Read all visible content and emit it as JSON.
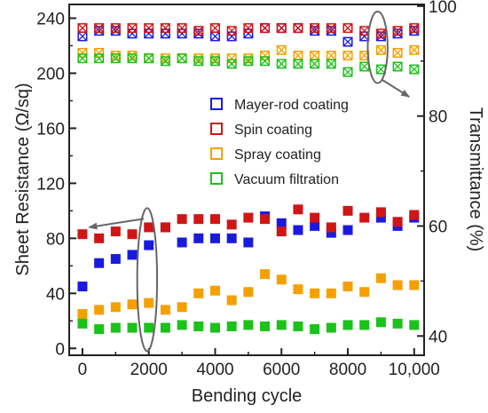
{
  "chart_data": {
    "type": "scatter",
    "xlabel": "Bending cycle",
    "ylabel_left": "Sheet Resistance (Ω/sq)",
    "ylabel_right": "Transmittance (%)",
    "xlim": [
      -400,
      10300
    ],
    "ylim_left": [
      -5,
      250
    ],
    "ylim_right": [
      36.5,
      100.3
    ],
    "x_ticks": [
      0,
      2000,
      4000,
      6000,
      8000,
      10000
    ],
    "x_tick_labels": [
      "0",
      "2000",
      "4000",
      "6000",
      "8000",
      "10,000"
    ],
    "y_left_ticks": [
      0,
      40,
      80,
      120,
      160,
      200,
      240
    ],
    "y_left_tick_labels": [
      "0",
      "40",
      "80",
      "120",
      "160",
      "200",
      "240"
    ],
    "y_right_ticks": [
      40,
      60,
      80,
      100
    ],
    "y_right_tick_labels": [
      "40",
      "60",
      "80",
      "100"
    ],
    "grid": false,
    "legend_position": "center-right",
    "x": [
      0,
      500,
      1000,
      1500,
      2000,
      2500,
      3000,
      3500,
      4000,
      4500,
      5000,
      5500,
      6000,
      6500,
      7000,
      7500,
      8000,
      8500,
      9000,
      9500,
      10000
    ],
    "series": [
      {
        "name": "Mayer-rod coating",
        "color": "#1a1adf",
        "sheet_resistance": [
          45,
          62,
          65,
          68,
          75,
          88,
          77,
          80,
          80,
          80,
          77,
          96,
          91,
          86,
          89,
          84,
          86,
          null,
          95,
          89,
          95
        ],
        "transmittance": [
          94.5,
          95.5,
          95.5,
          95,
          95,
          95,
          95,
          95,
          94.5,
          94.5,
          95,
          96,
          96,
          96,
          95.5,
          95.5,
          93.5,
          94.5,
          94.5,
          95,
          95.5
        ]
      },
      {
        "name": "Spin coating",
        "color": "#d01515",
        "sheet_resistance": [
          83,
          80,
          85,
          83,
          88,
          88,
          94,
          94,
          94,
          90,
          95,
          94,
          85,
          101,
          95,
          88,
          100,
          95,
          99,
          92,
          97
        ],
        "transmittance": [
          96,
          96,
          96,
          96,
          96,
          96,
          96,
          95.5,
          96,
          95.5,
          96,
          96,
          96,
          96,
          96,
          96,
          96,
          95.5,
          95,
          95.5,
          96
        ]
      },
      {
        "name": "Spray coating",
        "color": "#f5a000",
        "sheet_resistance": [
          25,
          28,
          30,
          32,
          33,
          28,
          30,
          40,
          42,
          35,
          41,
          54,
          50,
          43,
          40,
          40,
          45,
          41,
          51,
          46,
          46
        ],
        "transmittance": [
          91.5,
          91.5,
          91,
          91,
          90.5,
          90.5,
          90.5,
          90.5,
          90.5,
          90.5,
          90.5,
          91,
          92,
          91,
          91,
          91,
          91,
          91,
          92,
          91.5,
          92
        ]
      },
      {
        "name": "Vacuum filtration",
        "color": "#1ac21a",
        "sheet_resistance": [
          18,
          14,
          15,
          15,
          15,
          15,
          17,
          16,
          15,
          16,
          17,
          16,
          17,
          16,
          14,
          15,
          17,
          17,
          19,
          18,
          17
        ],
        "transmittance": [
          90.5,
          90.5,
          90.5,
          90.5,
          90.5,
          90,
          90.5,
          90,
          90,
          89.5,
          90,
          90,
          89.5,
          89.5,
          89.5,
          89.5,
          88,
          89,
          88.5,
          89,
          88.5
        ]
      }
    ],
    "annotations": [
      {
        "type": "ellipse",
        "target_axis": "left",
        "cx": 1950,
        "cy": 50,
        "rx": 300,
        "ry": 52,
        "arrow_to": [
          200,
          88
        ]
      },
      {
        "type": "ellipse",
        "target_axis": "right",
        "cx": 8900,
        "cy": 92.5,
        "rx": 300,
        "ry": 6.5,
        "arrow_to": [
          9850,
          83.5
        ]
      }
    ]
  }
}
